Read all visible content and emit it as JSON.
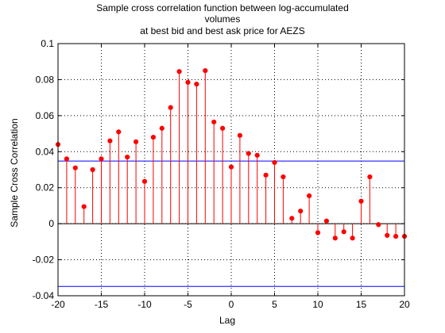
{
  "chart_data": {
    "type": "stem",
    "title_lines": [
      "Sample cross correlation function between log-accumulated",
      "volumes",
      "at best bid and best ask price for AEZS"
    ],
    "xlabel": "Lag",
    "ylabel": "Sample Cross Correlation",
    "xlim": [
      -20,
      20
    ],
    "ylim": [
      -0.04,
      0.1
    ],
    "x_ticks": [
      -20,
      -15,
      -10,
      -5,
      0,
      5,
      10,
      15,
      20
    ],
    "y_ticks": [
      -0.04,
      -0.02,
      0,
      0.02,
      0.04,
      0.06,
      0.08,
      0.1
    ],
    "x_tick_labels": [
      "-20",
      "-15",
      "-10",
      "-5",
      "0",
      "5",
      "10",
      "15",
      "20"
    ],
    "y_tick_labels": [
      "-0.04",
      "-0.02",
      "0",
      "0.02",
      "0.04",
      "0.06",
      "0.08",
      "0.1"
    ],
    "grid": true,
    "x": [
      -20,
      -19,
      -18,
      -17,
      -16,
      -15,
      -14,
      -13,
      -12,
      -11,
      -10,
      -9,
      -8,
      -7,
      -6,
      -5,
      -4,
      -3,
      -2,
      -1,
      0,
      1,
      2,
      3,
      4,
      5,
      6,
      7,
      8,
      9,
      10,
      11,
      12,
      13,
      14,
      15,
      16,
      17,
      18,
      19,
      20
    ],
    "y": [
      0.044,
      0.036,
      0.031,
      0.0095,
      0.03,
      0.036,
      0.046,
      0.051,
      0.037,
      0.0455,
      0.0235,
      0.048,
      0.053,
      0.0645,
      0.0845,
      0.0785,
      0.0775,
      0.085,
      0.0565,
      0.053,
      0.0315,
      0.049,
      0.039,
      0.038,
      0.027,
      0.034,
      0.026,
      0.003,
      0.007,
      0.0155,
      -0.005,
      0.0015,
      -0.008,
      -0.0045,
      -0.008,
      0.0125,
      0.026,
      -0.0005,
      -0.0065,
      -0.007,
      -0.007
    ],
    "confidence_bounds": [
      0.0348,
      -0.0348
    ],
    "colors": {
      "stem": "#ff0000",
      "bounds": "#0000ff",
      "axes": "#000000",
      "grid": "#000000"
    }
  }
}
